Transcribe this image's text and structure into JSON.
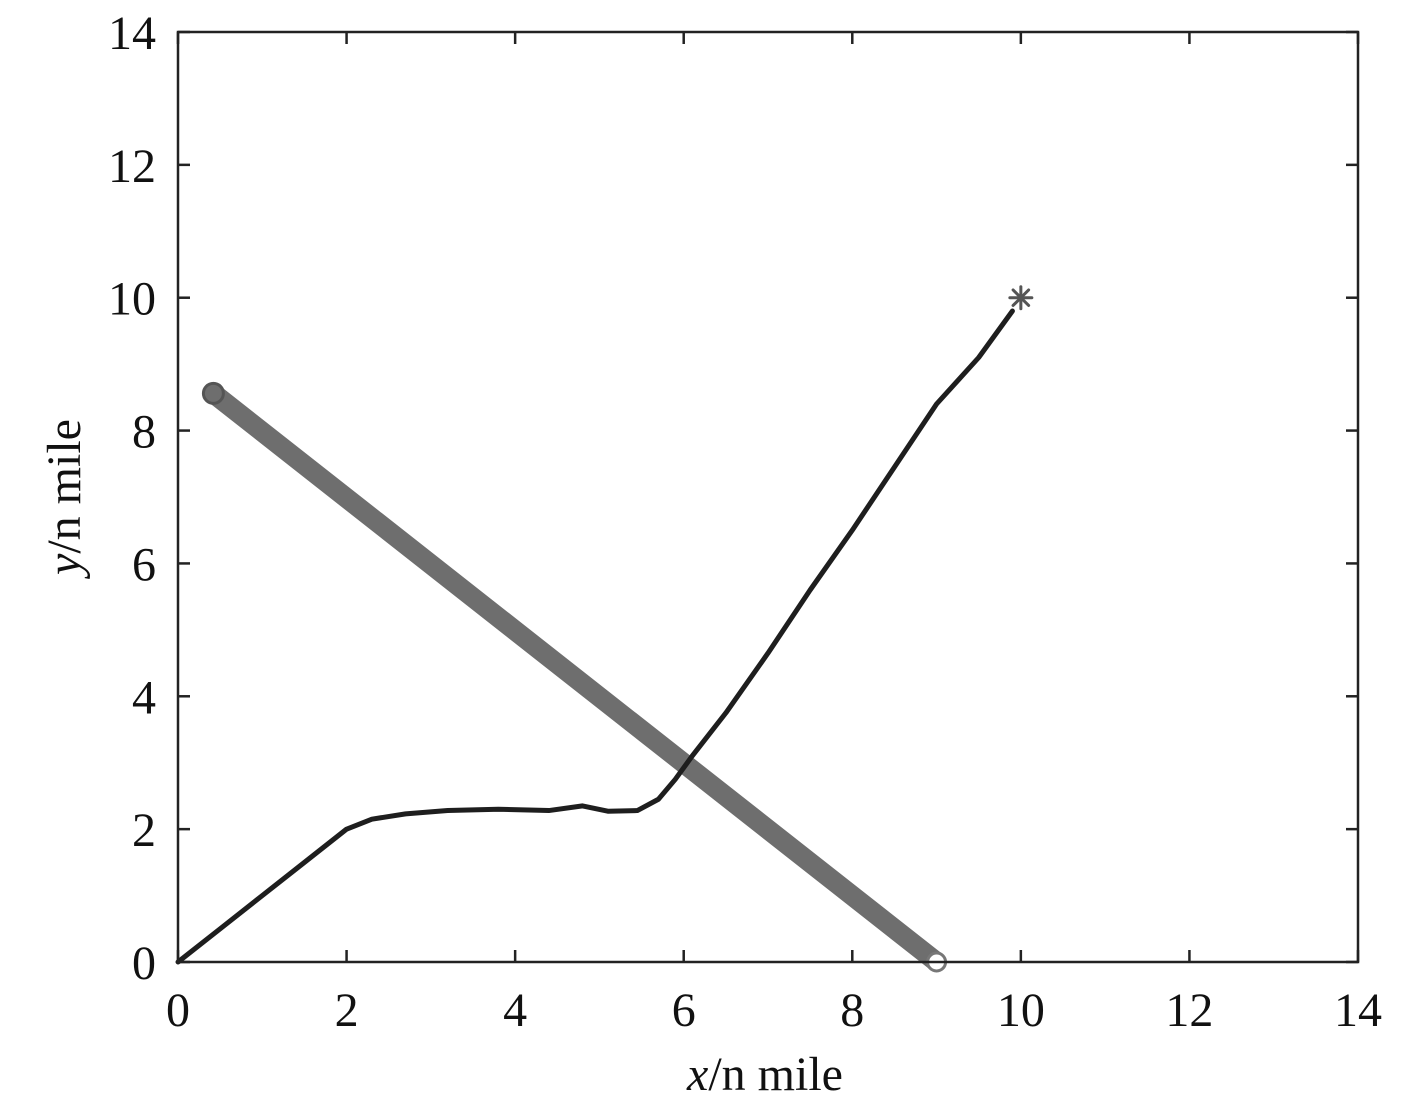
{
  "chart_data": {
    "type": "line",
    "xlabel": {
      "var": "x",
      "unit": "/n mile"
    },
    "ylabel": {
      "var": "y",
      "unit": "/n mile"
    },
    "xlim": [
      0,
      14
    ],
    "ylim": [
      0,
      14
    ],
    "xticks": [
      "0",
      "2",
      "4",
      "6",
      "8",
      "10",
      "12",
      "14"
    ],
    "yticks": [
      "0",
      "2",
      "4",
      "6",
      "8",
      "10",
      "12",
      "14"
    ],
    "grid": false,
    "series": [
      {
        "style": "thick-band",
        "color": "#6e6e6e",
        "marker_start": "circle",
        "marker_end": "circle",
        "points": [
          [
            0.42,
            8.56
          ],
          [
            9.0,
            0.0
          ]
        ]
      },
      {
        "style": "path",
        "color": "#1e1e1e",
        "points": [
          [
            0,
            0
          ],
          [
            0.5,
            0.5
          ],
          [
            1.0,
            1.0
          ],
          [
            1.5,
            1.5
          ],
          [
            2.0,
            2.0
          ],
          [
            2.3,
            2.15
          ],
          [
            2.7,
            2.23
          ],
          [
            3.2,
            2.28
          ],
          [
            3.8,
            2.3
          ],
          [
            4.4,
            2.28
          ],
          [
            4.8,
            2.35
          ],
          [
            5.1,
            2.27
          ],
          [
            5.45,
            2.28
          ],
          [
            5.7,
            2.45
          ],
          [
            5.9,
            2.75
          ],
          [
            6.1,
            3.1
          ],
          [
            6.5,
            3.75
          ],
          [
            7.0,
            4.65
          ],
          [
            7.5,
            5.6
          ],
          [
            8.0,
            6.5
          ],
          [
            8.5,
            7.45
          ],
          [
            9.0,
            8.4
          ],
          [
            9.5,
            9.1
          ],
          [
            9.9,
            9.8
          ]
        ]
      }
    ],
    "marker_goal": {
      "shape": "asterisk",
      "x": 10.0,
      "y": 10.0
    }
  }
}
